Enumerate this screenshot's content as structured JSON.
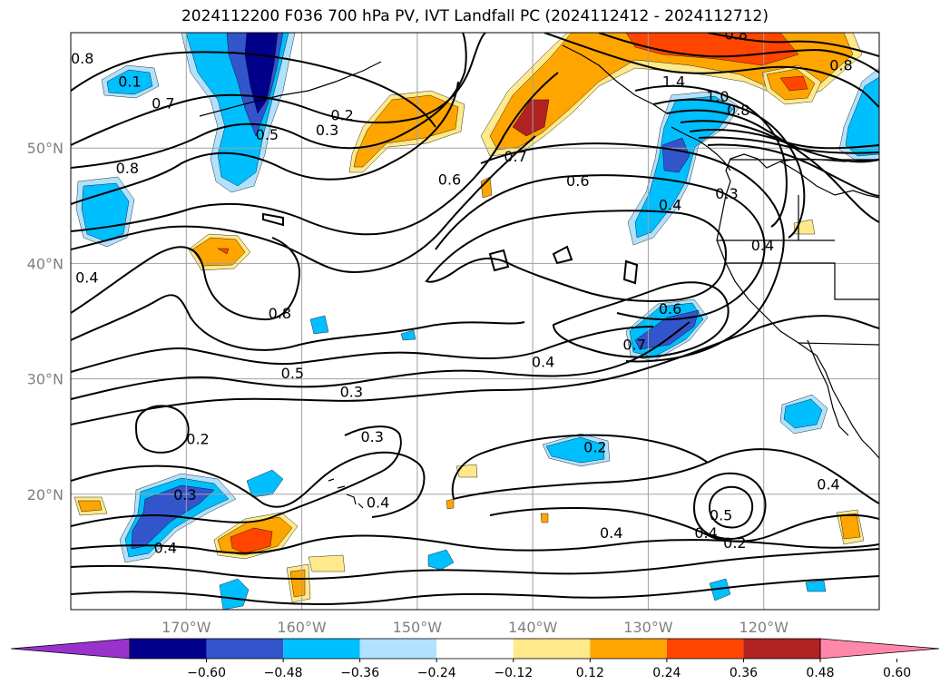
{
  "title": "2024112200 F036 700 hPa PV, IVT Landfall PC (2024112412 - 2024112712)",
  "map": {
    "lon_range": [
      -180,
      -110
    ],
    "lat_range": [
      10,
      60
    ],
    "lon_ticks": [
      {
        "lon": -170,
        "label": "170°W"
      },
      {
        "lon": -160,
        "label": "160°W"
      },
      {
        "lon": -150,
        "label": "150°W"
      },
      {
        "lon": -140,
        "label": "140°W"
      },
      {
        "lon": -130,
        "label": "130°W"
      },
      {
        "lon": -120,
        "label": "120°W"
      }
    ],
    "lat_ticks": [
      {
        "lat": 20,
        "label": "20°N"
      },
      {
        "lat": 30,
        "label": "30°N"
      },
      {
        "lat": 40,
        "label": "40°N"
      },
      {
        "lat": 50,
        "label": "50°N"
      }
    ],
    "gridlines": true
  },
  "contour_labels": [
    {
      "text": "0.8",
      "lon": -179,
      "lat": 57.8
    },
    {
      "text": "0.1",
      "lon": -174.9,
      "lat": 55.8
    },
    {
      "text": "0.7",
      "lon": -172,
      "lat": 53.9
    },
    {
      "text": "0.5",
      "lon": -163,
      "lat": 51.2
    },
    {
      "text": "0.2",
      "lon": -156.5,
      "lat": 52.9
    },
    {
      "text": "0.3",
      "lon": -157.8,
      "lat": 51.6
    },
    {
      "text": "0.7",
      "lon": -141.5,
      "lat": 49.3
    },
    {
      "text": "0.6",
      "lon": -147.2,
      "lat": 47.3
    },
    {
      "text": "0.6",
      "lon": -136.1,
      "lat": 47.2
    },
    {
      "text": "0.4",
      "lon": -128.1,
      "lat": 45.1
    },
    {
      "text": "0.3",
      "lon": -123.2,
      "lat": 46.1
    },
    {
      "text": "0.4",
      "lon": -120.1,
      "lat": 41.6
    },
    {
      "text": "0.8",
      "lon": -175.1,
      "lat": 48.3
    },
    {
      "text": "0.4",
      "lon": -178.6,
      "lat": 38.8
    },
    {
      "text": "0.8",
      "lon": -161.9,
      "lat": 35.7
    },
    {
      "text": "0.6",
      "lon": -128.1,
      "lat": 36.1
    },
    {
      "text": "0.7",
      "lon": -131.2,
      "lat": 33.0
    },
    {
      "text": "0.4",
      "lon": -139.1,
      "lat": 31.5
    },
    {
      "text": "0.5",
      "lon": -160.8,
      "lat": 30.5
    },
    {
      "text": "0.3",
      "lon": -155.7,
      "lat": 28.9
    },
    {
      "text": "0.2",
      "lon": -169.0,
      "lat": 24.8
    },
    {
      "text": "0.3",
      "lon": -153.9,
      "lat": 25.0
    },
    {
      "text": "0.2",
      "lon": -134.6,
      "lat": 24.1
    },
    {
      "text": "0.3",
      "lon": -170.1,
      "lat": 20.0
    },
    {
      "text": "0.4",
      "lon": -153.4,
      "lat": 19.3
    },
    {
      "text": "0.4",
      "lon": -171.8,
      "lat": 15.4
    },
    {
      "text": "0.4",
      "lon": -133.2,
      "lat": 16.7
    },
    {
      "text": "0.5",
      "lon": -123.7,
      "lat": 18.2
    },
    {
      "text": "0.4",
      "lon": -125.0,
      "lat": 16.7
    },
    {
      "text": "0.2",
      "lon": -122.5,
      "lat": 15.8
    },
    {
      "text": "0.4",
      "lon": -114.4,
      "lat": 20.9
    },
    {
      "text": "1.4",
      "lon": -127.8,
      "lat": 55.8
    },
    {
      "text": "1.0",
      "lon": -124.0,
      "lat": 54.5
    },
    {
      "text": "0.8",
      "lon": -122.2,
      "lat": 53.3
    },
    {
      "text": "0.8",
      "lon": -122.4,
      "lat": 59.9
    },
    {
      "text": "0.8",
      "lon": -113.3,
      "lat": 57.2
    }
  ],
  "colorbar": {
    "labels": [
      "−0.60",
      "−0.48",
      "−0.36",
      "−0.24",
      "−0.12",
      "0.12",
      "0.24",
      "0.36",
      "0.48",
      "0.60"
    ],
    "colors": [
      "#9932cc",
      "#00008b",
      "#3355cc",
      "#00bfff",
      "#b0e2ff",
      "#ffffff",
      "#ffe98a",
      "#ffa500",
      "#ff4500",
      "#b22222",
      "#ff88aa"
    ]
  },
  "shading_colors": {
    "neg1": "#b0e2ff",
    "neg2": "#00bfff",
    "neg3": "#3355cc",
    "neg4": "#00008b",
    "pos1": "#ffe98a",
    "pos2": "#ffa500",
    "pos3": "#ff4500",
    "pos4": "#b22222"
  }
}
